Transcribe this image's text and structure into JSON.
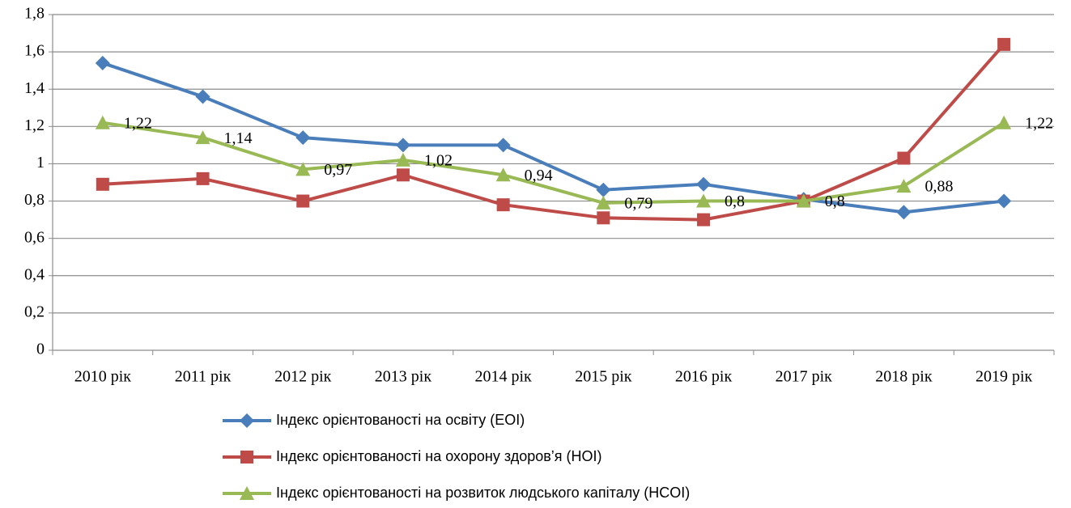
{
  "chart_data": {
    "type": "line",
    "categories": [
      "2010 рік",
      "2011 рік",
      "2012 рік",
      "2013 рік",
      "2014 рік",
      "2015 рік",
      "2016 рік",
      "2017 рік",
      "2018 рік",
      "2019 рік"
    ],
    "series": [
      {
        "name": "Індекс орієнтованості на освіту (EOI)",
        "color": "#4a7ebb",
        "marker": "diamond",
        "values": [
          1.54,
          1.36,
          1.14,
          1.1,
          1.1,
          0.86,
          0.89,
          0.81,
          0.74,
          0.8
        ]
      },
      {
        "name": "Індекс орієнтованості на охорону здоров’я (HOI)",
        "color": "#be4b48",
        "marker": "square",
        "values": [
          0.89,
          0.92,
          0.8,
          0.94,
          0.78,
          0.71,
          0.7,
          0.8,
          1.03,
          1.64
        ]
      },
      {
        "name": "Індекс орієнтованості на розвиток людського капіталу (HCOI)",
        "color": "#98b954",
        "marker": "triangle",
        "values": [
          1.22,
          1.14,
          0.97,
          1.02,
          0.94,
          0.79,
          0.8,
          0.8,
          0.88,
          1.22
        ],
        "value_labels": [
          "1,22",
          "1,14",
          "0,97",
          "1,02",
          "0,94",
          "0,79",
          "0,8",
          "0,8",
          "0,88",
          "1,22"
        ]
      }
    ],
    "ylim": [
      0,
      1.8
    ],
    "yticks": [
      0,
      {
        "value": 0.2,
        "label": "0,2"
      },
      {
        "value": 0.4,
        "label": "0,4"
      },
      {
        "value": 0.6,
        "label": "0,6"
      },
      {
        "value": 0.8,
        "label": "0,8"
      },
      1,
      {
        "value": 1.2,
        "label": "1,2"
      },
      {
        "value": 1.4,
        "label": "1,4"
      },
      {
        "value": 1.6,
        "label": "1,6"
      },
      {
        "value": 1.8,
        "label": "1,8"
      }
    ],
    "grid": true,
    "legend": "bottom"
  }
}
